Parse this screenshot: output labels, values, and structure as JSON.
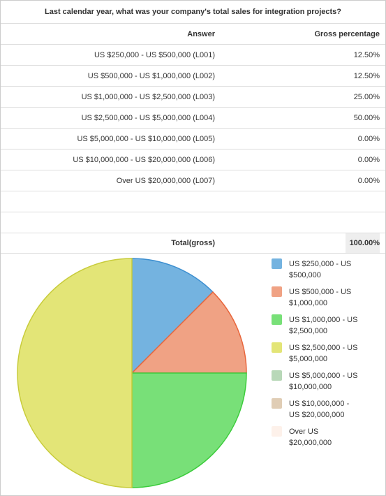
{
  "title": "Last calendar year, what was your company's total sales for integration projects?",
  "table": {
    "columns": [
      "Answer",
      "Gross percentage"
    ],
    "answers": [
      "US $250,000 - US $500,000 (L001)",
      "US $500,000 - US $1,000,000 (L002)",
      "US $1,000,000 - US $2,500,000 (L003)",
      "US $2,500,000 - US $5,000,000 (L004)",
      "US $5,000,000 - US $10,000,000 (L005)",
      "US $10,000,000 - US $20,000,000 (L006)",
      "Over US $20,000,000 (L007)"
    ],
    "total_label": "Total(gross)",
    "total": "100.00%"
  },
  "chart_data": {
    "type": "pie",
    "categories": [
      "US $250,000 - US $500,000",
      "US $500,000 - US $1,000,000",
      "US $1,000,000 - US $2,500,000",
      "US $2,500,000 - US $5,000,000",
      "US $5,000,000 - US $10,000,000",
      "US $10,000,000 - US $20,000,000",
      "Over US $20,000,000"
    ],
    "values": [
      12.5,
      12.5,
      25,
      50,
      0,
      0,
      0
    ],
    "value_labels": [
      "12.50%",
      "12.50%",
      "25.00%",
      "50.00%",
      "0.00%",
      "0.00%",
      "0.00%"
    ],
    "colors": [
      "#74b3e0",
      "#f0a284",
      "#78e078",
      "#e3e577",
      "#b8d8b8",
      "#e0cdb5",
      "#fdf1ea"
    ],
    "stroke_colors": [
      "#3d8fd0",
      "#e8663c",
      "#3ccc3c",
      "#c8cc3c",
      "#8cbc8c",
      "#c8ac88",
      "#f0d8c8"
    ]
  }
}
